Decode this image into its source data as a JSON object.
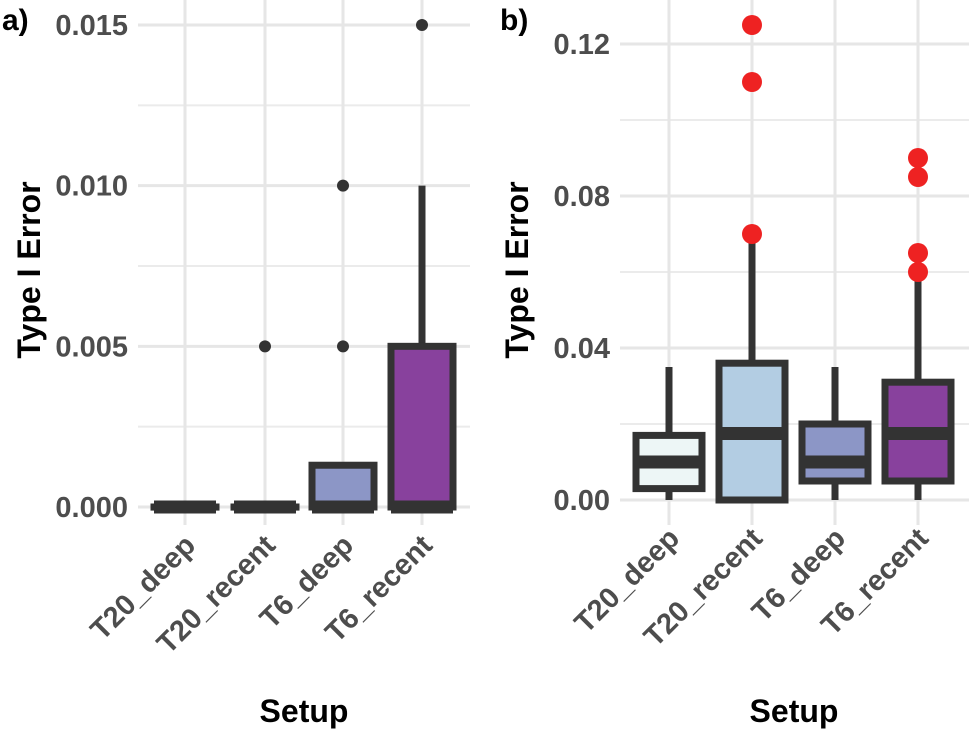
{
  "chart_data": [
    {
      "type": "boxplot",
      "panel_label": "a)",
      "xlabel": "Setup",
      "ylabel": "Type I Error",
      "ylim": [
        0,
        0.015
      ],
      "yticks": [
        "0.000",
        "0.005",
        "0.010",
        "0.015"
      ],
      "ytick_values": [
        0,
        0.005,
        0.01,
        0.015
      ],
      "grid": true,
      "outlier_color": "#333333",
      "categories": [
        "T20_deep",
        "T20_recent",
        "T6_deep",
        "T6_recent"
      ],
      "boxes": [
        {
          "min": 0,
          "q1": 0,
          "median": 0,
          "q3": 0,
          "max": 0,
          "outliers": [],
          "fill": "#edf6f6"
        },
        {
          "min": 0,
          "q1": 0,
          "median": 0,
          "q3": 0,
          "max": 0,
          "outliers": [
            0.005
          ],
          "fill": "#b3cde3"
        },
        {
          "min": 0,
          "q1": 0,
          "median": 0,
          "q3": 0.0013,
          "max": 0.0013,
          "outliers": [
            0.005,
            0.01
          ],
          "fill": "#8c96c6"
        },
        {
          "min": 0,
          "q1": 0,
          "median": 0,
          "q3": 0.005,
          "max": 0.01,
          "outliers": [
            0.015
          ],
          "fill": "#88419d"
        }
      ]
    },
    {
      "type": "boxplot",
      "panel_label": "b)",
      "xlabel": "Setup",
      "ylabel": "Type I Error",
      "ylim": [
        0,
        0.12
      ],
      "yticks": [
        "0.00",
        "0.04",
        "0.08",
        "0.12"
      ],
      "ytick_values": [
        0,
        0.04,
        0.08,
        0.12
      ],
      "grid": true,
      "outlier_color": "#ee2222",
      "categories": [
        "T20_deep",
        "T20_recent",
        "T6_deep",
        "T6_recent"
      ],
      "boxes": [
        {
          "min": 0,
          "q1": 0.003,
          "median": 0.01,
          "q3": 0.017,
          "max": 0.035,
          "outliers": [],
          "fill": "#edf6f6"
        },
        {
          "min": 0,
          "q1": 0,
          "median": 0.0175,
          "q3": 0.036,
          "max": 0.068,
          "outliers": [
            0.07,
            0.11,
            0.125
          ],
          "fill": "#b3cde3"
        },
        {
          "min": 0,
          "q1": 0.005,
          "median": 0.01,
          "q3": 0.02,
          "max": 0.035,
          "outliers": [],
          "fill": "#8c96c6"
        },
        {
          "min": 0,
          "q1": 0.005,
          "median": 0.0175,
          "q3": 0.031,
          "max": 0.058,
          "outliers": [
            0.06,
            0.065,
            0.085,
            0.09
          ],
          "fill": "#88419d"
        }
      ]
    }
  ]
}
